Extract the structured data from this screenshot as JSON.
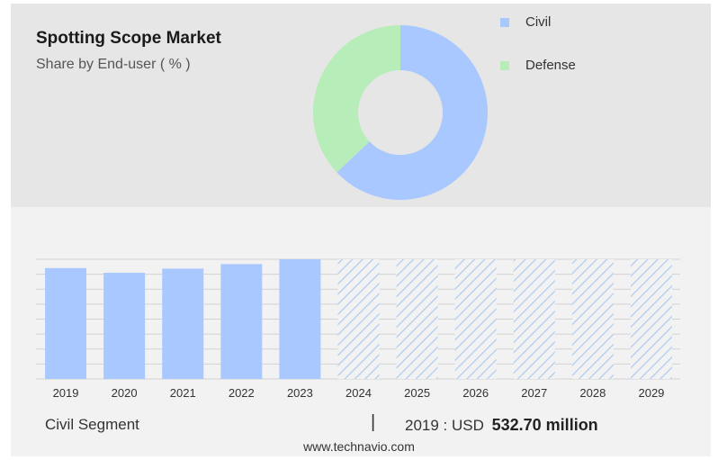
{
  "header": {
    "title": "Spotting Scope Market",
    "subtitle": "Share by End-user ( % )"
  },
  "chart_data": [
    {
      "type": "pie",
      "title": "Spotting Scope Market",
      "subtitle": "Share by End-user ( % )",
      "donut": true,
      "legend_position": "right",
      "categories": [
        "Civil",
        "Defense"
      ],
      "values": [
        63,
        37
      ],
      "colors": [
        "#a8c8ff",
        "#b6edb8"
      ]
    },
    {
      "type": "bar",
      "categories": [
        "2019",
        "2020",
        "2021",
        "2022",
        "2023",
        "2024",
        "2025",
        "2026",
        "2027",
        "2028",
        "2029"
      ],
      "values": [
        532.7,
        510,
        530,
        552,
        575,
        575,
        575,
        575,
        575,
        575,
        575
      ],
      "forecast_from_index": 5,
      "ylim": [
        0,
        575
      ],
      "grid": true,
      "colors": {
        "actual": "#a8c8ff",
        "forecast_hatch": "#b0ccf0"
      }
    }
  ],
  "footer": {
    "segment_label": "Civil Segment",
    "separator": "|",
    "value_prefix": "2019 : USD",
    "value": "532.70 million"
  },
  "website": "www.technavio.com"
}
